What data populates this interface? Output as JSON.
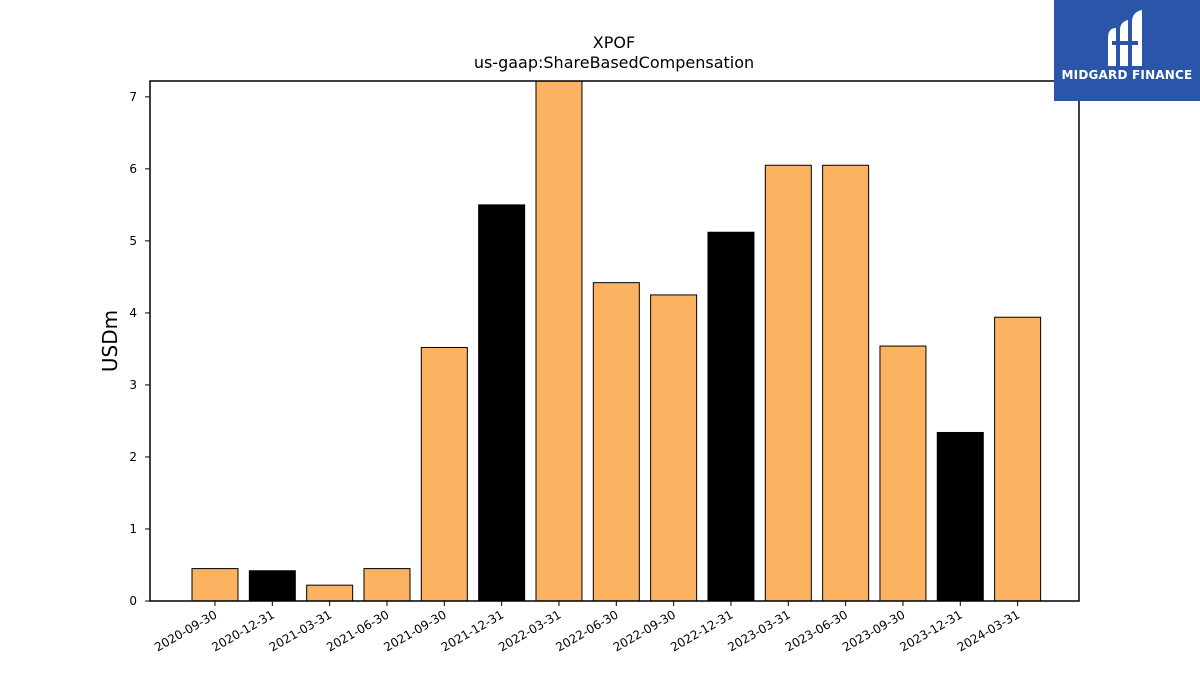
{
  "chart_data": {
    "type": "bar",
    "title": "XPOF",
    "subtitle": "us-gaap:ShareBasedCompensation",
    "xlabel": "",
    "ylabel": "USDm",
    "ylim": [
      0,
      7.22
    ],
    "yticks": [
      0,
      1,
      2,
      3,
      4,
      5,
      6,
      7
    ],
    "grid": false,
    "categories": [
      "2020-09-30",
      "2020-12-31",
      "2021-03-31",
      "2021-06-30",
      "2021-09-30",
      "2021-12-31",
      "2022-03-31",
      "2022-06-30",
      "2022-09-30",
      "2022-12-31",
      "2023-03-31",
      "2023-06-30",
      "2023-09-30",
      "2023-12-31",
      "2024-03-31"
    ],
    "values": [
      0.45,
      0.42,
      0.22,
      0.45,
      3.52,
      5.5,
      7.3,
      4.42,
      4.25,
      5.12,
      6.05,
      6.05,
      3.54,
      2.34,
      3.94
    ],
    "bar_colors": [
      "#fbb362",
      "#000000",
      "#fbb362",
      "#fbb362",
      "#fbb362",
      "#000000",
      "#fbb362",
      "#fbb362",
      "#fbb362",
      "#000000",
      "#fbb362",
      "#fbb362",
      "#fbb362",
      "#000000",
      "#fbb362"
    ]
  },
  "logo": {
    "text": "MIDGARD FINANCE",
    "icon": "midgard-logo-icon",
    "background": "#2a55a8"
  }
}
